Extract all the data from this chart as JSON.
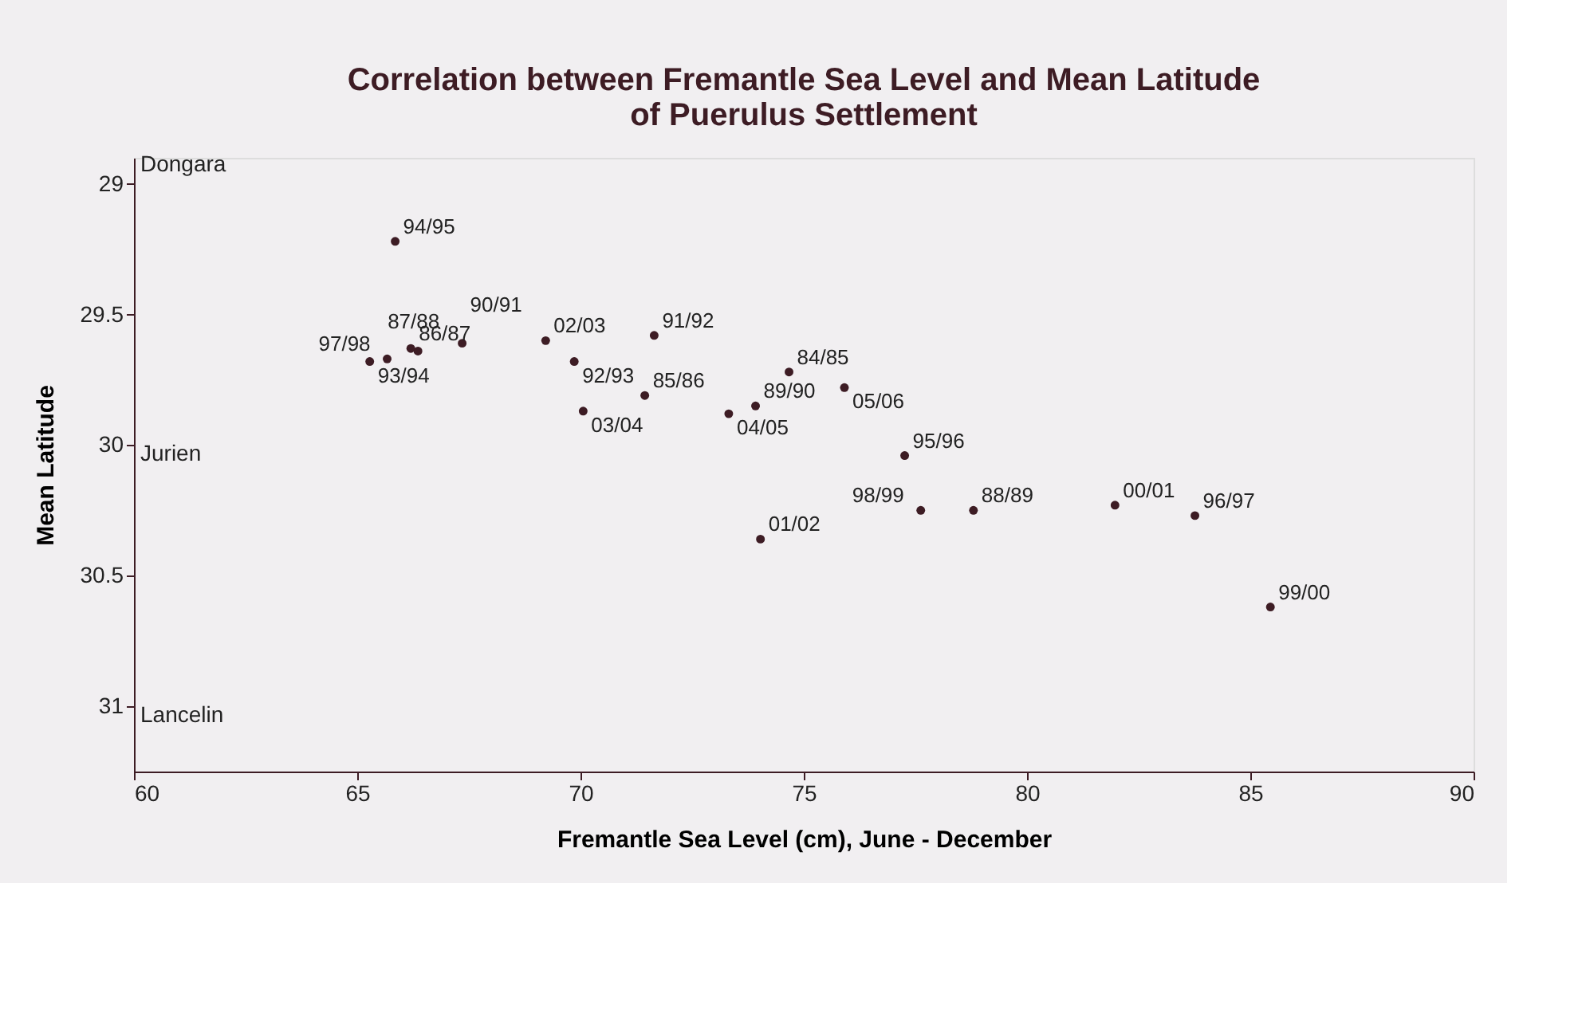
{
  "chart_data": {
    "type": "scatter",
    "title": "Correlation between Fremantle Sea Level and Mean Latitude of Puerulus Settlement",
    "xlabel": "Fremantle Sea Level (cm), June - December",
    "ylabel": "Mean Latitude",
    "x": [
      65.85,
      65.28,
      65.67,
      66.36,
      66.2,
      67.35,
      69.22,
      69.86,
      71.65,
      70.06,
      71.44,
      74.67,
      73.92,
      73.32,
      75.91,
      77.26,
      77.62,
      78.8,
      81.97,
      83.76,
      74.03,
      85.45
    ],
    "series": [
      {
        "color": "#3d1c24",
        "values": [
          29.22,
          29.68,
          29.67,
          29.64,
          29.63,
          29.61,
          29.6,
          29.68,
          29.58,
          29.87,
          29.81,
          29.72,
          29.85,
          29.88,
          29.78,
          30.04,
          30.25,
          30.25,
          30.23,
          30.27,
          30.36,
          30.62
        ]
      }
    ],
    "annotations": [
      {
        "text": "94/95",
        "x": 65.85,
        "y": 29.22
      },
      {
        "text": "93/94",
        "x": 65.28,
        "y": 29.68
      },
      {
        "text": "97/98",
        "x": 65.67,
        "y": 29.67
      },
      {
        "text": "87/88",
        "x": 66.36,
        "y": 29.64
      },
      {
        "text": "86/87",
        "x": 66.2,
        "y": 29.63
      },
      {
        "text": "90/91",
        "x": 67.35,
        "y": 29.61
      },
      {
        "text": "02/03",
        "x": 69.22,
        "y": 29.6
      },
      {
        "text": "92/93",
        "x": 69.86,
        "y": 29.68
      },
      {
        "text": "91/92",
        "x": 71.65,
        "y": 29.58
      },
      {
        "text": "03/04",
        "x": 70.06,
        "y": 29.87
      },
      {
        "text": "85/86",
        "x": 71.44,
        "y": 29.81
      },
      {
        "text": "84/85",
        "x": 74.67,
        "y": 29.72
      },
      {
        "text": "89/90",
        "x": 73.92,
        "y": 29.85
      },
      {
        "text": "04/05",
        "x": 73.32,
        "y": 29.88
      },
      {
        "text": "05/06",
        "x": 75.91,
        "y": 29.78
      },
      {
        "text": "95/96",
        "x": 77.26,
        "y": 30.04
      },
      {
        "text": "98/99",
        "x": 77.62,
        "y": 30.25
      },
      {
        "text": "88/89",
        "x": 78.8,
        "y": 30.25
      },
      {
        "text": "00/01",
        "x": 81.97,
        "y": 30.23
      },
      {
        "text": "96/97",
        "x": 83.76,
        "y": 30.27
      },
      {
        "text": "01/02",
        "x": 74.03,
        "y": 30.36
      },
      {
        "text": "99/00",
        "x": 85.45,
        "y": 30.62
      },
      "Dongara",
      "Jurien",
      "Lancelin"
    ],
    "xlim": [
      60,
      90
    ],
    "xticks": [
      60,
      65,
      70,
      75,
      80,
      85,
      90
    ],
    "ylim": [
      31.25,
      28.9
    ],
    "yticks": [
      29,
      29.5,
      30,
      30.5,
      31
    ],
    "marker": "circle",
    "grid": false
  }
}
